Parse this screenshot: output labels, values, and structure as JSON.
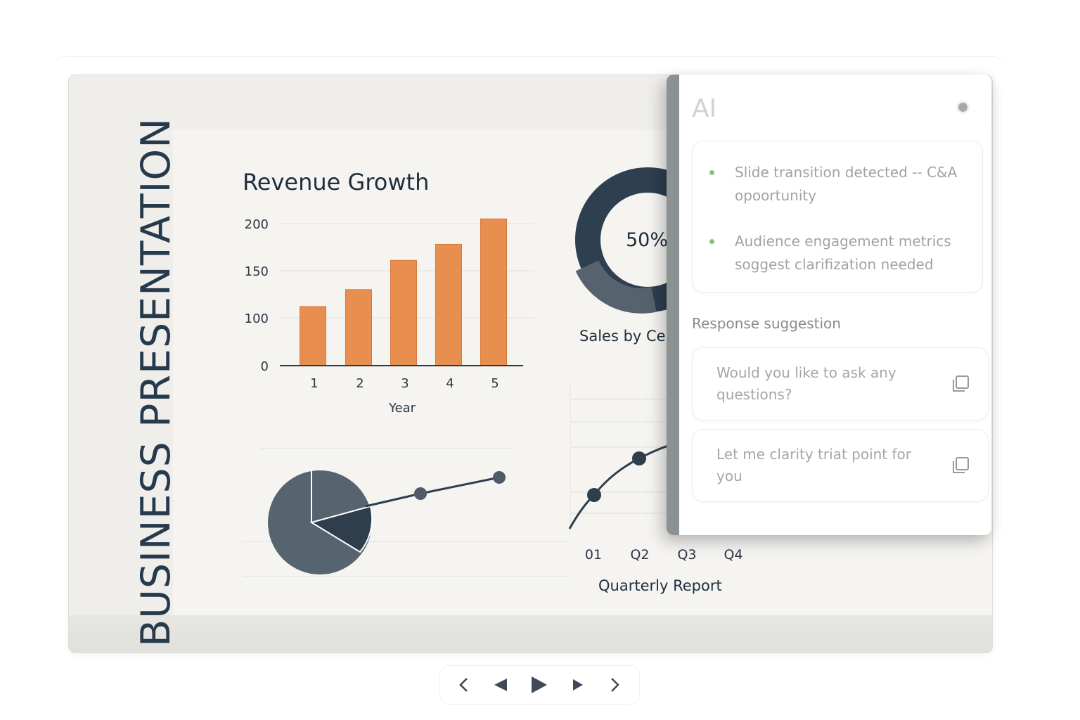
{
  "slide": {
    "vertical_title": "BUSINESS PRESENTATION"
  },
  "revenue_chart": {
    "title": "Revenue Growth"
  },
  "donut": {
    "center_label": "50%",
    "caption": "Sales by Ce"
  },
  "quarterly": {
    "caption": "Quarterly Report"
  },
  "chart_data": [
    {
      "type": "bar",
      "title": "Revenue Growth",
      "categories": [
        "1",
        "2",
        "3",
        "4",
        "5"
      ],
      "values": [
        112,
        130,
        161,
        178,
        205
      ],
      "xlabel": "Year",
      "ylabel": "",
      "y_ticks": [
        "0",
        "100",
        "150",
        "200"
      ],
      "y_tick_values": [
        0,
        100,
        150,
        200
      ],
      "ylim": [
        0,
        210
      ],
      "color": "#e88f50",
      "grid": true
    },
    {
      "type": "pie",
      "variant": "donut",
      "center_label": "50%",
      "caption": "Sales by Ce",
      "values": [
        50,
        50
      ],
      "colors": [
        "#2e3f4f",
        "#56636e"
      ]
    },
    {
      "type": "pie",
      "values": [
        72,
        28
      ],
      "colors": [
        "#56646f",
        "#2f3e4c"
      ]
    },
    {
      "type": "line",
      "x_ticks": [
        "01",
        "Q2",
        "Q3",
        "Q4"
      ],
      "caption": "Quarterly Report",
      "color": "#2f3e4c"
    }
  ],
  "ai_panel": {
    "title": "AI",
    "insights": [
      "Slide transition detected -- C&A opoortunity",
      "Audience engagement metrics soggest clarifization needed"
    ],
    "section_label": "Response suggestion",
    "suggestions": [
      "Would you like to ask any questions?",
      "Let me clarity triat point for you"
    ],
    "colors": {
      "bullet": "#8dbb7f",
      "edge": "#8c9293"
    }
  },
  "nav": {
    "icons": [
      "chevron-left-icon",
      "previous-triangle-icon",
      "play-icon",
      "next-triangle-icon",
      "chevron-right-icon"
    ]
  }
}
